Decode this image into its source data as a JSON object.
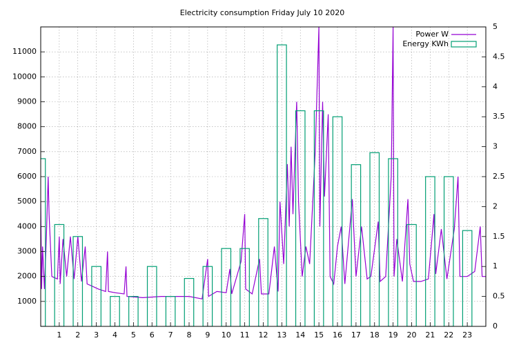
{
  "chart_data": {
    "type": "line",
    "title": "Electricity consumption Friday July 10 2020",
    "xlim": [
      0,
      24
    ],
    "xticks": [
      1,
      2,
      3,
      4,
      5,
      6,
      7,
      8,
      9,
      10,
      11,
      12,
      13,
      14,
      15,
      16,
      17,
      18,
      19,
      20,
      21,
      22,
      23
    ],
    "ylim": [
      0,
      12000
    ],
    "yticks": [
      1000,
      2000,
      3000,
      4000,
      5000,
      6000,
      7000,
      8000,
      9000,
      10000,
      11000
    ],
    "y2lim": [
      0,
      5
    ],
    "y2ticks": [
      0,
      0.5,
      1,
      1.5,
      2,
      2.5,
      3,
      3.5,
      4,
      4.5,
      5
    ],
    "grid": true,
    "legend": "top right",
    "series": [
      {
        "name": "Power W",
        "color": "#9400d3",
        "type": "line",
        "axis": "y",
        "x": [
          0,
          0.05,
          0.1,
          0.2,
          0.3,
          0.4,
          0.45,
          0.6,
          0.9,
          1.0,
          1.05,
          1.2,
          1.4,
          1.6,
          1.8,
          2.0,
          2.2,
          2.4,
          2.5,
          2.8,
          3.1,
          3.5,
          3.6,
          3.65,
          4.0,
          4.5,
          4.6,
          4.65,
          5.5,
          6.5,
          7,
          8,
          8.7,
          9,
          9.05,
          9.5,
          10,
          10.2,
          10.3,
          10.8,
          11,
          11.05,
          11.4,
          11.8,
          11.9,
          12.3,
          12.6,
          12.8,
          12.9,
          13.1,
          13.3,
          13.4,
          13.5,
          13.6,
          13.8,
          13.9,
          14.1,
          14.3,
          14.5,
          14.8,
          15.0,
          15.05,
          15.2,
          15.3,
          15.5,
          15.6,
          15.8,
          16,
          16.2,
          16.4,
          16.8,
          17,
          17.3,
          17.6,
          17.8,
          18.2,
          18.3,
          18.6,
          18.9,
          19.0,
          19.05,
          19.2,
          19.5,
          19.8,
          19.9,
          20.1,
          20.5,
          20.9,
          21.1,
          21.2,
          21.3,
          21.6,
          21.9,
          22.3,
          22.5,
          22.6,
          23.0,
          23.4,
          23.7,
          23.8,
          24
        ],
        "values": [
          5000,
          1500,
          3200,
          1500,
          3500,
          6000,
          4500,
          2000,
          1900,
          3600,
          1700,
          3500,
          2000,
          3600,
          1900,
          3600,
          1800,
          3200,
          1700,
          1600,
          1500,
          1400,
          3000,
          1400,
          1350,
          1300,
          2400,
          1200,
          1150,
          1200,
          1200,
          1200,
          1100,
          2700,
          1200,
          1400,
          1350,
          2300,
          1300,
          2600,
          4500,
          1500,
          1300,
          2700,
          1300,
          1300,
          3200,
          1400,
          5000,
          2500,
          6500,
          4000,
          7200,
          4500,
          9000,
          5000,
          2000,
          3200,
          2500,
          7000,
          12000,
          4000,
          9000,
          5200,
          8500,
          2000,
          1700,
          3200,
          4000,
          1700,
          5100,
          2000,
          4000,
          1900,
          2000,
          4200,
          1800,
          2000,
          6000,
          12000,
          2000,
          3500,
          1800,
          5100,
          2500,
          1800,
          1800,
          1900,
          3600,
          4500,
          2100,
          3900,
          1900,
          3900,
          6000,
          2000,
          2000,
          2200,
          4000,
          2000,
          2000
        ]
      },
      {
        "name": "Energy KWh",
        "color": "#009e73",
        "type": "bar",
        "axis": "y2",
        "x": [
          0,
          1,
          2,
          3,
          4,
          5,
          6,
          7,
          8,
          9,
          10,
          11,
          12,
          13,
          14,
          15,
          16,
          17,
          18,
          19,
          20,
          21,
          22,
          23
        ],
        "values": [
          2.8,
          1.7,
          1.5,
          1.0,
          0.5,
          0.5,
          1.0,
          0.5,
          0.8,
          1.0,
          1.3,
          1.3,
          1.8,
          4.7,
          3.6,
          3.6,
          3.5,
          2.7,
          2.9,
          2.8,
          1.7,
          2.5,
          2.5,
          1.6
        ]
      }
    ]
  }
}
